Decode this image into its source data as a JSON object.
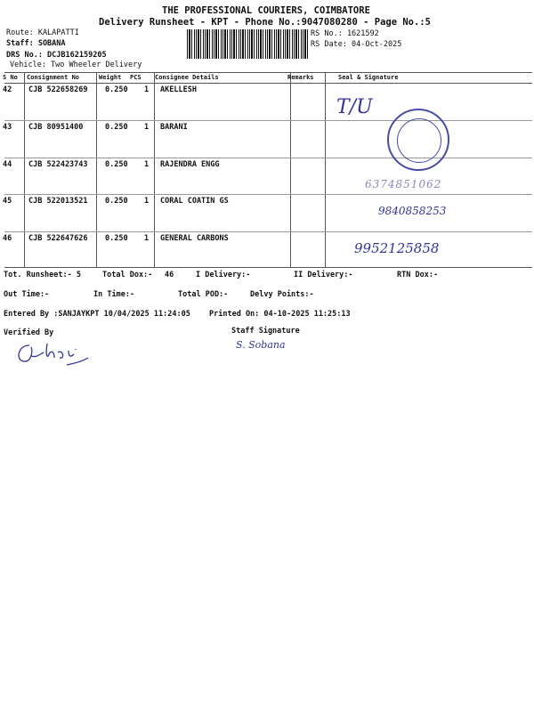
{
  "header": {
    "company": "THE PROFESSIONAL COURIERS, COIMBATORE",
    "subtitle": "Delivery Runsheet - KPT - Phone No.:9047080280 - Page No.:5",
    "route": "Route: KALAPATTI",
    "staff": "Staff: SOBANA",
    "drs_no": "DRS No.: DCJB162159205",
    "vehicle": "Vehicle: Two Wheeler Delivery",
    "rs_no": "RS No.: 1621592",
    "rs_date": "RS Date: 04-Oct-2025"
  },
  "table": {
    "columns": [
      "S No",
      "Consignment No",
      "Weight",
      "PCS",
      "Consignee Details",
      "Remarks",
      "Seal & Signature"
    ],
    "rows": [
      {
        "sno": "42",
        "consignment": "CJB 522658269",
        "weight": "0.250",
        "pcs": "1",
        "consignee": "AKELLESH",
        "handwritten": "T/U"
      },
      {
        "sno": "43",
        "consignment": "CJB 80951400",
        "weight": "0.250",
        "pcs": "1",
        "consignee": "BARANI",
        "handwritten": ""
      },
      {
        "sno": "44",
        "consignment": "CJB 522423743",
        "weight": "0.250",
        "pcs": "1",
        "consignee": "RAJENDRA ENGG",
        "handwritten": "6374851062"
      },
      {
        "sno": "45",
        "consignment": "CJB 522013521",
        "weight": "0.250",
        "pcs": "1",
        "consignee": "CORAL COATIN GS",
        "handwritten": "9840858253"
      },
      {
        "sno": "46",
        "consignment": "CJB 522647626",
        "weight": "0.250",
        "pcs": "1",
        "consignee": "GENERAL CARBONS",
        "handwritten": "9952125858"
      }
    ]
  },
  "summary": {
    "tot_runsheet": "Tot. Runsheet:- 5",
    "total_dox": "Total Dox:-",
    "total_dox_value": "46",
    "i_delivery": "I Delivery:-",
    "ii_delivery": "II Delivery:-",
    "rtn_dox": "RTN Dox:-",
    "out_time": "Out Time:-",
    "in_time": "In Time:-",
    "total_pod": "Total POD:-",
    "delvy_points": "Delvy Points:-",
    "entered_by": "Entered By :SANJAYKPT 10/04/2025 11:24:05",
    "printed_on": "Printed On: 04-10-2025 11:25:13",
    "verified_by": "Verified By",
    "staff_signature": "Staff Signature",
    "staff_signed_name": "S. Sobana"
  }
}
